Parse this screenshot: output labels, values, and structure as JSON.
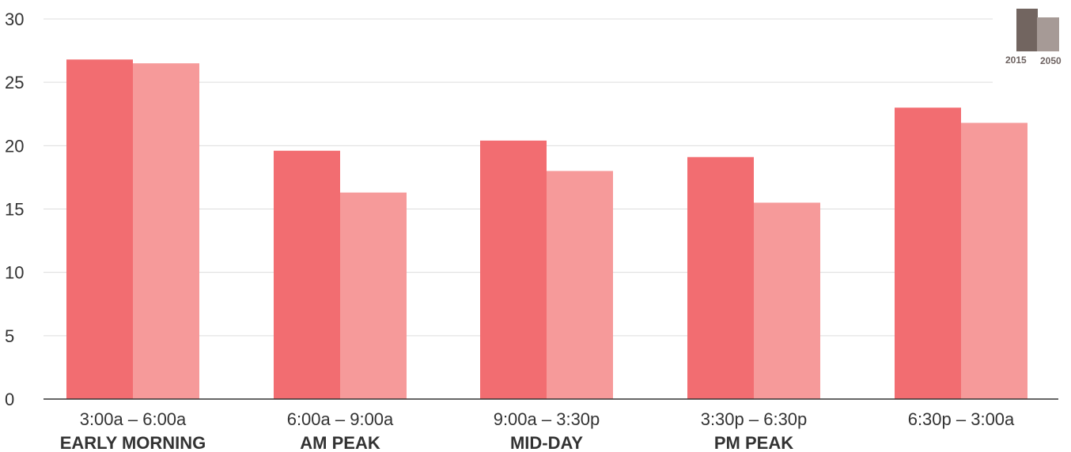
{
  "chart_data": {
    "type": "bar",
    "title": "",
    "xlabel": "",
    "ylabel": "",
    "ylim": [
      0,
      30
    ],
    "yticks": [
      0,
      5,
      10,
      15,
      20,
      25,
      30
    ],
    "grid": true,
    "legend_position": "top-right",
    "categories": [
      {
        "time": "3:00a – 6:00a",
        "name": "EARLY MORNING"
      },
      {
        "time": "6:00a – 9:00a",
        "name": "AM PEAK"
      },
      {
        "time": "9:00a – 3:30p",
        "name": "MID-DAY"
      },
      {
        "time": "3:30p – 6:30p",
        "name": "PM PEAK"
      },
      {
        "time": "6:30p – 3:00a",
        "name": ""
      }
    ],
    "series": [
      {
        "name": "2015",
        "values": [
          26.8,
          19.6,
          20.4,
          19.1,
          23.0
        ]
      },
      {
        "name": "2050",
        "values": [
          26.5,
          16.3,
          18.0,
          15.5,
          21.8
        ]
      }
    ],
    "colors": {
      "bar_2015": "#f26d71",
      "bar_2050": "#f69a9a",
      "legend_2015": "#726560",
      "legend_2050": "#a69a96",
      "grid": "#dddddd",
      "axis": "#333333"
    }
  }
}
